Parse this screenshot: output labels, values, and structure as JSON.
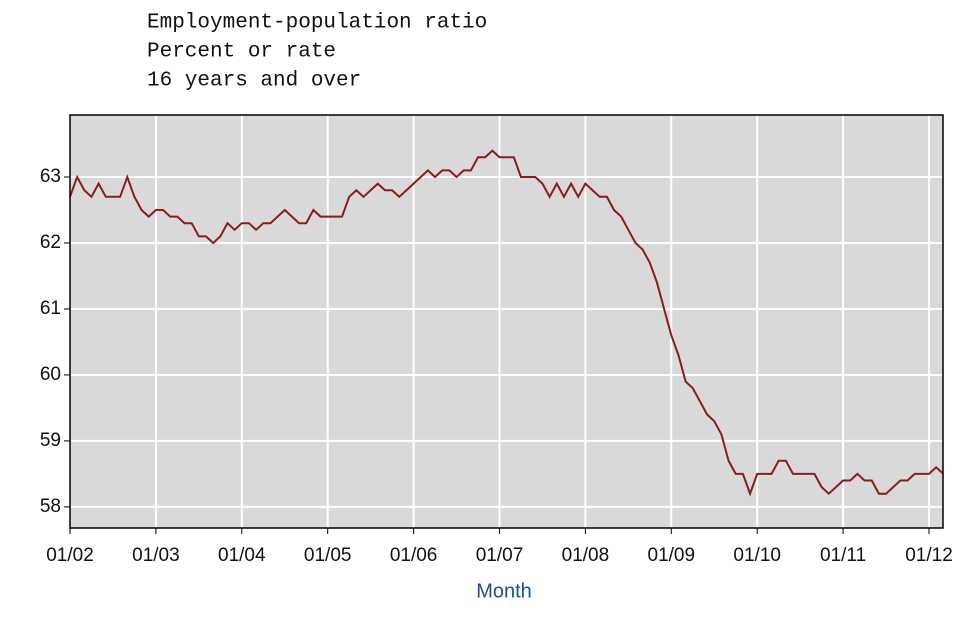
{
  "chart_data": {
    "type": "line",
    "title": "Employment-population ratio",
    "subtitle": [
      "Percent or rate",
      "16 years and over"
    ],
    "xlabel": "Month",
    "categories": [
      "01/02",
      null,
      null,
      null,
      null,
      null,
      null,
      null,
      null,
      null,
      null,
      null,
      "01/03",
      null,
      null,
      null,
      null,
      null,
      null,
      null,
      null,
      null,
      null,
      null,
      "01/04",
      null,
      null,
      null,
      null,
      null,
      null,
      null,
      null,
      null,
      null,
      null,
      "01/05",
      null,
      null,
      null,
      null,
      null,
      null,
      null,
      null,
      null,
      null,
      null,
      "01/06",
      null,
      null,
      null,
      null,
      null,
      null,
      null,
      null,
      null,
      null,
      null,
      "01/07",
      null,
      null,
      null,
      null,
      null,
      null,
      null,
      null,
      null,
      null,
      null,
      "01/08",
      null,
      null,
      null,
      null,
      null,
      null,
      null,
      null,
      null,
      null,
      null,
      "01/09",
      null,
      null,
      null,
      null,
      null,
      null,
      null,
      null,
      null,
      null,
      null,
      "01/10",
      null,
      null,
      null,
      null,
      null,
      null,
      null,
      null,
      null,
      null,
      null,
      "01/11",
      null,
      null,
      null,
      null,
      null,
      null,
      null,
      null,
      null,
      null,
      null,
      "01/12",
      null,
      null
    ],
    "series": [
      {
        "name": "Employment-population ratio",
        "color": "#8b1c1c",
        "values": [
          62.7,
          63.0,
          62.8,
          62.7,
          62.9,
          62.7,
          62.7,
          62.7,
          63.0,
          62.7,
          62.5,
          62.4,
          62.5,
          62.5,
          62.4,
          62.4,
          62.3,
          62.3,
          62.1,
          62.1,
          62.0,
          62.1,
          62.3,
          62.2,
          62.3,
          62.3,
          62.2,
          62.3,
          62.3,
          62.4,
          62.5,
          62.4,
          62.3,
          62.3,
          62.5,
          62.4,
          62.4,
          62.4,
          62.4,
          62.7,
          62.8,
          62.7,
          62.8,
          62.9,
          62.8,
          62.8,
          62.7,
          62.8,
          62.9,
          63.0,
          63.1,
          63.0,
          63.1,
          63.1,
          63.0,
          63.1,
          63.1,
          63.3,
          63.3,
          63.4,
          63.3,
          63.3,
          63.3,
          63.0,
          63.0,
          63.0,
          62.9,
          62.7,
          62.9,
          62.7,
          62.9,
          62.7,
          62.9,
          62.8,
          62.7,
          62.7,
          62.5,
          62.4,
          62.2,
          62.0,
          61.9,
          61.7,
          61.4,
          61.0,
          60.6,
          60.3,
          59.9,
          59.8,
          59.6,
          59.4,
          59.3,
          59.1,
          58.7,
          58.5,
          58.5,
          58.2,
          58.5,
          58.5,
          58.5,
          58.7,
          58.7,
          58.5,
          58.5,
          58.5,
          58.5,
          58.3,
          58.2,
          58.3,
          58.4,
          58.4,
          58.5,
          58.4,
          58.4,
          58.2,
          58.2,
          58.3,
          58.4,
          58.4,
          58.5,
          58.5,
          58.5,
          58.6,
          58.5
        ]
      }
    ],
    "ylim": [
      57.68,
      63.94
    ],
    "yticks": [
      58,
      59,
      60,
      61,
      62,
      63
    ],
    "grid": true,
    "background": "#d9d9d9"
  }
}
